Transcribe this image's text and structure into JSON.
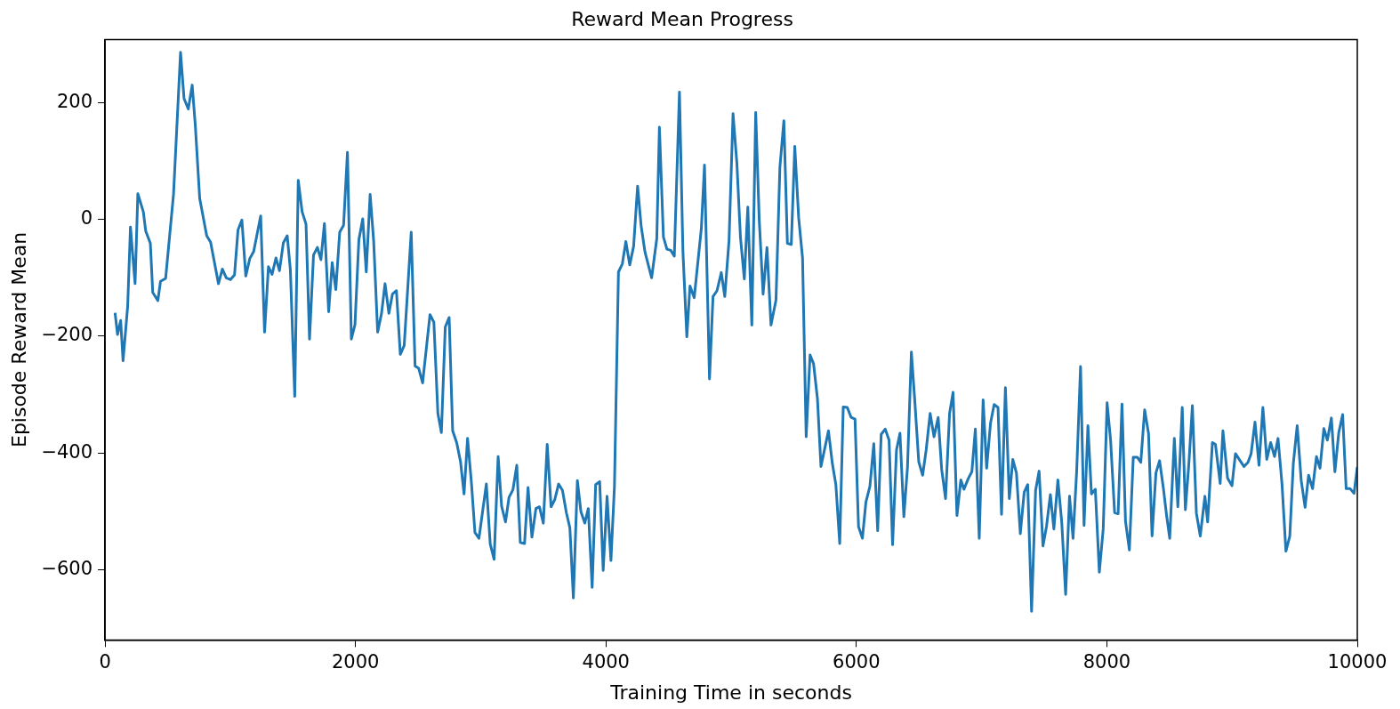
{
  "chart_data": {
    "type": "line",
    "title": "Reward Mean Progress",
    "xlabel": "Training Time in seconds",
    "ylabel": "Episode Reward Mean",
    "x": [
      80,
      100,
      125,
      144,
      181,
      203,
      240,
      262,
      306,
      325,
      362,
      381,
      422,
      443,
      484,
      547,
      603,
      631,
      665,
      696,
      721,
      756,
      812,
      843,
      906,
      937,
      968,
      1002,
      1034,
      1062,
      1093,
      1124,
      1156,
      1187,
      1243,
      1274,
      1305,
      1334,
      1365,
      1393,
      1424,
      1455,
      1480,
      1515,
      1543,
      1574,
      1605,
      1633,
      1665,
      1696,
      1724,
      1752,
      1786,
      1814,
      1843,
      1874,
      1905,
      1936,
      1967,
      1996,
      2027,
      2058,
      2086,
      2117,
      2145,
      2177,
      2208,
      2236,
      2267,
      2295,
      2327,
      2358,
      2389,
      2445,
      2476,
      2505,
      2536,
      2595,
      2626,
      2658,
      2686,
      2717,
      2748,
      2776,
      2808,
      2839,
      2867,
      2895,
      2926,
      2954,
      2986,
      3017,
      3045,
      3076,
      3107,
      3139,
      3167,
      3198,
      3226,
      3257,
      3288,
      3316,
      3350,
      3378,
      3409,
      3441,
      3469,
      3500,
      3531,
      3562,
      3591,
      3622,
      3653,
      3684,
      3712,
      3740,
      3772,
      3800,
      3831,
      3859,
      3890,
      3918,
      3950,
      3978,
      4009,
      4040,
      4068,
      4100,
      4131,
      4159,
      4190,
      4221,
      4253,
      4281,
      4312,
      4365,
      4406,
      4427,
      4459,
      4487,
      4518,
      4546,
      4587,
      4615,
      4646,
      4671,
      4705,
      4762,
      4787,
      4827,
      4855,
      4887,
      4921,
      4949,
      4983,
      5015,
      5046,
      5074,
      5105,
      5133,
      5165,
      5196,
      5224,
      5255,
      5286,
      5318,
      5358,
      5389,
      5421,
      5449,
      5480,
      5508,
      5539,
      5570,
      5599,
      5630,
      5658,
      5689,
      5717,
      5777,
      5808,
      5836,
      5867,
      5895,
      5927,
      5958,
      5989,
      6017,
      6048,
      6076,
      6108,
      6139,
      6170,
      6198,
      6230,
      6261,
      6289,
      6320,
      6348,
      6379,
      6408,
      6439,
      6467,
      6498,
      6529,
      6557,
      6589,
      6620,
      6653,
      6681,
      6712,
      6744,
      6772,
      6803,
      6834,
      6859,
      6893,
      6922,
      6950,
      6981,
      7012,
      7040,
      7071,
      7100,
      7131,
      7159,
      7190,
      7221,
      7249,
      7278,
      7309,
      7340,
      7368,
      7399,
      7431,
      7459,
      7490,
      7518,
      7549,
      7577,
      7609,
      7640,
      7671,
      7702,
      7730,
      7759,
      7790,
      7818,
      7849,
      7877,
      7908,
      7940,
      7971,
      8002,
      8030,
      8062,
      8090,
      8121,
      8149,
      8180,
      8211,
      8243,
      8271,
      8302,
      8333,
      8361,
      8392,
      8421,
      8452,
      8477,
      8502,
      8539,
      8567,
      8602,
      8627,
      8655,
      8683,
      8715,
      8746,
      8783,
      8805,
      8843,
      8867,
      8905,
      8927,
      8964,
      8999,
      9027,
      9064,
      9095,
      9127,
      9152,
      9183,
      9215,
      9246,
      9277,
      9308,
      9339,
      9367,
      9399,
      9430,
      9461,
      9489,
      9520,
      9552,
      9583,
      9611,
      9643,
      9674,
      9702,
      9733,
      9761,
      9793,
      9821,
      9852,
      9883,
      9911,
      9943,
      9974,
      10000
    ],
    "series": [
      {
        "color": "#1f77b4",
        "values": [
          -160,
          -197,
          -173,
          -242,
          -148,
          -13,
          -110,
          44,
          13,
          -20,
          -41,
          -125,
          -139,
          -106,
          -101,
          43,
          286,
          207,
          189,
          230,
          161,
          36,
          -28,
          -39,
          -110,
          -85,
          -100,
          -103,
          -95,
          -18,
          -1,
          -97,
          -67,
          -55,
          6,
          -193,
          -81,
          -94,
          -66,
          -88,
          -40,
          -28,
          -86,
          -303,
          67,
          13,
          -8,
          -205,
          -61,
          -48,
          -69,
          -7,
          -158,
          -74,
          -120,
          -22,
          -10,
          115,
          -205,
          -180,
          -35,
          1,
          -90,
          43,
          -36,
          -193,
          -161,
          -110,
          -161,
          -128,
          -122,
          -231,
          -216,
          -22,
          -251,
          -255,
          -280,
          -163,
          -176,
          -332,
          -365,
          -184,
          -168,
          -362,
          -382,
          -415,
          -470,
          -375,
          -451,
          -536,
          -546,
          -497,
          -453,
          -556,
          -582,
          -406,
          -491,
          -518,
          -476,
          -463,
          -421,
          -553,
          -555,
          -459,
          -544,
          -495,
          -492,
          -520,
          -385,
          -492,
          -480,
          -453,
          -464,
          -502,
          -528,
          -648,
          -447,
          -500,
          -520,
          -495,
          -630,
          -454,
          -449,
          -601,
          -474,
          -584,
          -457,
          -90,
          -76,
          -38,
          -78,
          -46,
          57,
          -11,
          -56,
          -100,
          -33,
          158,
          -30,
          -51,
          -53,
          -63,
          218,
          -56,
          -201,
          -114,
          -134,
          -15,
          93,
          -273,
          -132,
          -122,
          -91,
          -132,
          -36,
          181,
          95,
          -30,
          -102,
          21,
          -181,
          183,
          0,
          -128,
          -48,
          -181,
          -138,
          89,
          169,
          -41,
          -43,
          125,
          3,
          -66,
          -372,
          -232,
          -247,
          -307,
          -423,
          -362,
          -418,
          -454,
          -555,
          -321,
          -322,
          -339,
          -342,
          -526,
          -546,
          -484,
          -457,
          -384,
          -533,
          -368,
          -359,
          -378,
          -557,
          -395,
          -366,
          -509,
          -424,
          -227,
          -313,
          -415,
          -438,
          -395,
          -332,
          -372,
          -339,
          -428,
          -478,
          -332,
          -296,
          -507,
          -446,
          -462,
          -444,
          -432,
          -359,
          -546,
          -309,
          -426,
          -349,
          -317,
          -322,
          -505,
          -288,
          -478,
          -411,
          -434,
          -538,
          -467,
          -454,
          -671,
          -464,
          -431,
          -559,
          -526,
          -471,
          -530,
          -446,
          -519,
          -642,
          -474,
          -546,
          -431,
          -252,
          -524,
          -353,
          -470,
          -462,
          -604,
          -530,
          -314,
          -378,
          -502,
          -504,
          -316,
          -517,
          -566,
          -407,
          -407,
          -416,
          -326,
          -367,
          -542,
          -434,
          -413,
          -461,
          -507,
          -546,
          -375,
          -492,
          -322,
          -497,
          -418,
          -319,
          -503,
          -542,
          -474,
          -518,
          -382,
          -385,
          -452,
          -362,
          -443,
          -456,
          -401,
          -413,
          -423,
          -416,
          -401,
          -347,
          -421,
          -322,
          -411,
          -382,
          -406,
          -375,
          -454,
          -568,
          -542,
          -418,
          -353,
          -447,
          -493,
          -438,
          -461,
          -406,
          -426,
          -358,
          -378,
          -340,
          -432,
          -365,
          -334,
          -461,
          -461,
          -469,
          -424
        ]
      }
    ],
    "xlim": [
      0,
      10000
    ],
    "xticks": [
      0,
      2000,
      4000,
      6000,
      8000,
      10000
    ],
    "ylim": [
      -720,
      308
    ],
    "yticks": [
      {
        "value": -600,
        "label": "−600"
      },
      {
        "value": -400,
        "label": "−400"
      },
      {
        "value": -200,
        "label": "−200"
      },
      0,
      200
    ],
    "grid": false,
    "legend": false
  }
}
